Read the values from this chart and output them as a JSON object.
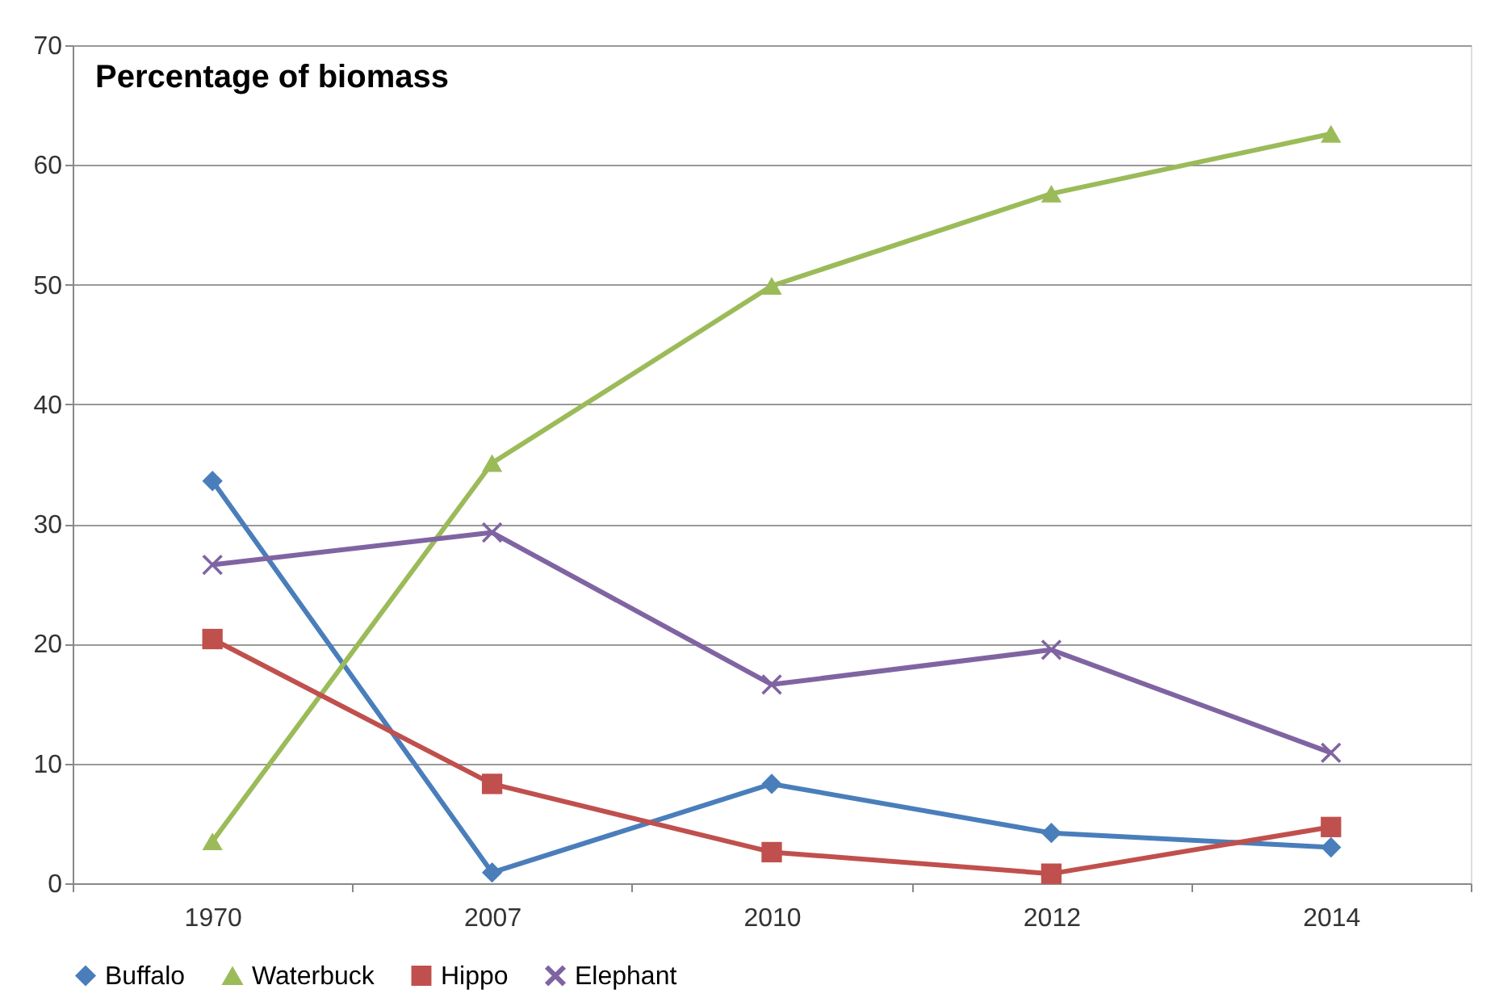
{
  "chart_data": {
    "type": "line",
    "title": "Percentage of biomass",
    "categories": [
      "1970",
      "2007",
      "2010",
      "2012",
      "2014"
    ],
    "series": [
      {
        "name": "Buffalo",
        "color": "#4a7ebb",
        "marker": "diamond",
        "values": [
          33.6,
          0.9,
          8.3,
          4.2,
          3.0
        ]
      },
      {
        "name": "Waterbuck",
        "color": "#9bbb59",
        "marker": "triangle",
        "values": [
          3.5,
          35.1,
          49.9,
          57.6,
          62.6
        ]
      },
      {
        "name": "Hippo",
        "color": "#c0504d",
        "marker": "square",
        "values": [
          20.4,
          8.3,
          2.6,
          0.8,
          4.7
        ]
      },
      {
        "name": "Elephant",
        "color": "#8064a2",
        "marker": "cross",
        "values": [
          26.6,
          29.3,
          16.6,
          19.5,
          10.9
        ]
      }
    ],
    "ylim": [
      0,
      70
    ],
    "yticks": [
      0,
      10,
      20,
      30,
      40,
      50,
      60,
      70
    ],
    "grid": "y",
    "legend": "bottom",
    "line_style": "solid"
  }
}
